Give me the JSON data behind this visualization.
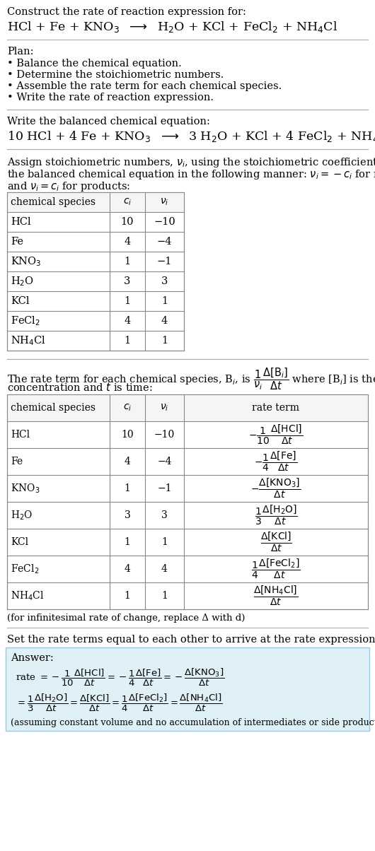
{
  "title_text": "Construct the rate of reaction expression for:",
  "plan_header": "Plan:",
  "plan_items": [
    "Balance the chemical equation.",
    "Determine the stoichiometric numbers.",
    "Assemble the rate term for each chemical species.",
    "Write the rate of reaction expression."
  ],
  "section2_header": "Write the balanced chemical equation:",
  "section3_intro": "Assign stoichiometric numbers, $\\nu_i$, using the stoichiometric coefficients, $c_i$, from\nthe balanced chemical equation in the following manner: $\\nu_i = -c_i$ for reactants\nand $\\nu_i = c_i$ for products:",
  "table1_cols": [
    "chemical species",
    "$c_i$",
    "$\\nu_i$"
  ],
  "table1_data": [
    [
      "HCl",
      "10",
      "−10"
    ],
    [
      "Fe",
      "4",
      "−4"
    ],
    [
      "KNO$_3$",
      "1",
      "−1"
    ],
    [
      "H$_2$O",
      "3",
      "3"
    ],
    [
      "KCl",
      "1",
      "1"
    ],
    [
      "FeCl$_2$",
      "4",
      "4"
    ],
    [
      "NH$_4$Cl",
      "1",
      "1"
    ]
  ],
  "section4_intro_p1": "The rate term for each chemical species, B",
  "section4_intro_p2": ", is ",
  "section4_intro_p3": " where [B",
  "section4_intro_p4": "] is the amount\nconcentration and ",
  "section4_intro_p5": " is time:",
  "table2_cols": [
    "chemical species",
    "$c_i$",
    "$\\nu_i$",
    "rate term"
  ],
  "table2_data": [
    [
      "HCl",
      "10",
      "−10",
      "$-\\dfrac{1}{10}\\dfrac{\\Delta[\\mathrm{HCl}]}{\\Delta t}$"
    ],
    [
      "Fe",
      "4",
      "−4",
      "$-\\dfrac{1}{4}\\dfrac{\\Delta[\\mathrm{Fe}]}{\\Delta t}$"
    ],
    [
      "KNO$_3$",
      "1",
      "−1",
      "$-\\dfrac{\\Delta[\\mathrm{KNO_3}]}{\\Delta t}$"
    ],
    [
      "H$_2$O",
      "3",
      "3",
      "$\\dfrac{1}{3}\\dfrac{\\Delta[\\mathrm{H_2O}]}{\\Delta t}$"
    ],
    [
      "KCl",
      "1",
      "1",
      "$\\dfrac{\\Delta[\\mathrm{KCl}]}{\\Delta t}$"
    ],
    [
      "FeCl$_2$",
      "4",
      "4",
      "$\\dfrac{1}{4}\\dfrac{\\Delta[\\mathrm{FeCl_2}]}{\\Delta t}$"
    ],
    [
      "NH$_4$Cl",
      "1",
      "1",
      "$\\dfrac{\\Delta[\\mathrm{NH_4Cl}]}{\\Delta t}$"
    ]
  ],
  "infinitesimal_note": "(for infinitesimal rate of change, replace Δ with d)",
  "section5_header": "Set the rate terms equal to each other to arrive at the rate expression:",
  "answer_label": "Answer:",
  "answer_note": "(assuming constant volume and no accumulation of intermediates or side products)",
  "bg_color": "#ffffff",
  "answer_bg": "#dff0f7",
  "answer_border": "#a0c8d8",
  "table_border": "#888888",
  "table_header_bg": "#f0f0f0",
  "line_color": "#aaaaaa"
}
